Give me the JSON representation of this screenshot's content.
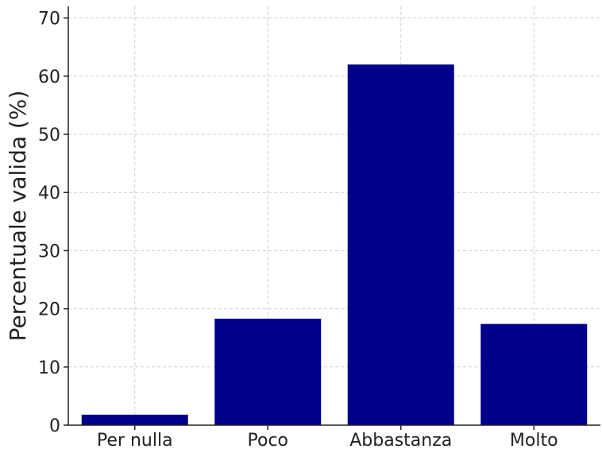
{
  "chart_data": {
    "type": "bar",
    "title": "",
    "xlabel": "",
    "ylabel": "Percentuale valida (%)",
    "categories": [
      "Per nulla",
      "Poco",
      "Abbastanza",
      "Molto"
    ],
    "values": [
      1.8,
      18.3,
      62.0,
      17.4
    ],
    "ylim": [
      0,
      72
    ],
    "yticks": [
      0,
      10,
      20,
      30,
      40,
      50,
      60,
      70
    ],
    "bar_color": "#00008b",
    "grid": true,
    "legend": "none"
  }
}
